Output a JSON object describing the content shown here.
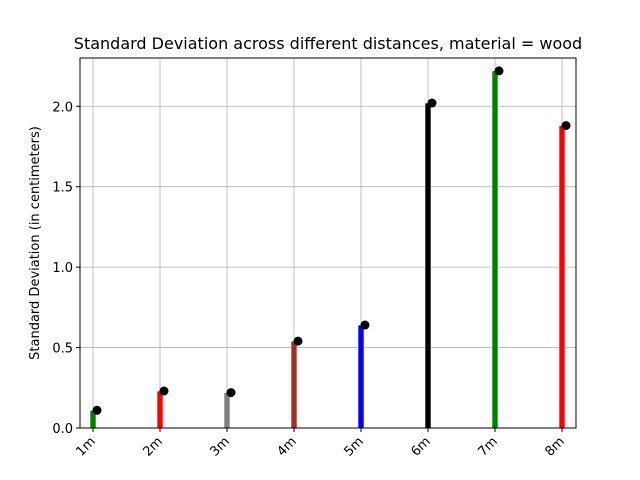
{
  "chart_data": {
    "type": "bar",
    "title": "Standard Deviation across different distances, material = wood",
    "xlabel": "",
    "ylabel": "Standard Deviation (in centimeters)",
    "categories": [
      "1m",
      "2m",
      "3m",
      "4m",
      "5m",
      "6m",
      "7m",
      "8m"
    ],
    "values": [
      0.11,
      0.23,
      0.22,
      0.54,
      0.64,
      2.02,
      2.22,
      1.88
    ],
    "bar_colors": [
      "#008000",
      "#ff0000",
      "#808080",
      "#a52a2a",
      "#0000ff",
      "#000000",
      "#008000",
      "#ff0000"
    ],
    "marker_color": "#000000",
    "marker_shape": "circle",
    "ylim": [
      0,
      2.3
    ],
    "yticks": [
      "0.0",
      "0.5",
      "1.0",
      "1.5",
      "2.0"
    ],
    "grid": true,
    "legend": "none"
  }
}
